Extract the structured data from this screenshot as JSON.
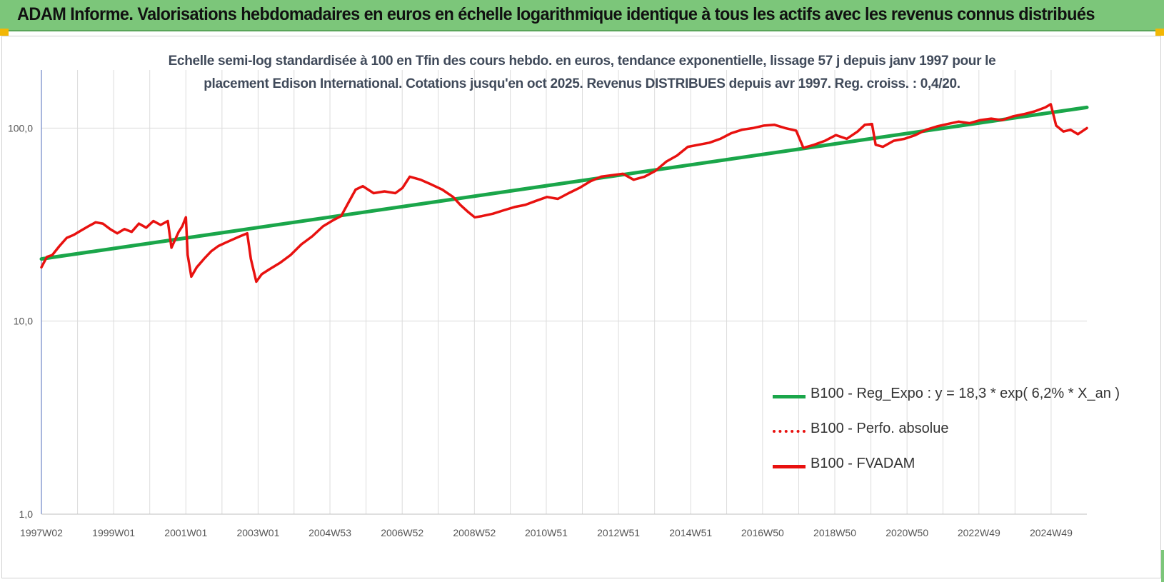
{
  "banner": {
    "title": "ADAM Informe. Valorisations hebdomadaires en euros en échelle logarithmique identique à tous les actifs avec les revenus connus distribués"
  },
  "chart_data": {
    "type": "line",
    "title": "Echelle semi-log standardisée à 100 en Tfin des cours hebdo. en euros, tendance exponentielle, lissage 57 j depuis janv 1997 pour le placement Edison International. Cotations jusqu'en oct 2025. Revenus DISTRIBUES depuis avr 1997. Reg. croiss. : 0,4/20.",
    "title_lines": [
      "Echelle semi-log standardisée à 100 en Tfin des cours hebdo. en euros, tendance exponentielle, lissage 57 j depuis janv 1997 pour le",
      "placement Edison International. Cotations jusqu'en oct 2025. Revenus DISTRIBUES depuis avr 1997. Reg. croiss. : 0,4/20."
    ],
    "y_scale": "log",
    "ylim": [
      1,
      200
    ],
    "y_ticks": [
      {
        "value": 1,
        "label": "1,0"
      },
      {
        "value": 10,
        "label": "10,0"
      },
      {
        "value": 100,
        "label": "100,0"
      }
    ],
    "xlim": [
      1997.0,
      2025.95
    ],
    "x_ticks": [
      {
        "value": 1997.0,
        "label": "1997W02"
      },
      {
        "value": 1999.0,
        "label": "1999W01"
      },
      {
        "value": 2001.0,
        "label": "2001W01"
      },
      {
        "value": 2003.0,
        "label": "2003W01"
      },
      {
        "value": 2004.99,
        "label": "2004W53"
      },
      {
        "value": 2006.99,
        "label": "2006W52"
      },
      {
        "value": 2008.99,
        "label": "2008W52"
      },
      {
        "value": 2010.98,
        "label": "2010W51"
      },
      {
        "value": 2012.98,
        "label": "2012W51"
      },
      {
        "value": 2014.98,
        "label": "2014W51"
      },
      {
        "value": 2016.97,
        "label": "2016W50"
      },
      {
        "value": 2018.97,
        "label": "2018W50"
      },
      {
        "value": 2020.97,
        "label": "2020W50"
      },
      {
        "value": 2022.96,
        "label": "2022W49"
      },
      {
        "value": 2024.96,
        "label": "2024W49"
      }
    ],
    "grid": "vertical+horizontal",
    "legend_position": "bottom-right",
    "series": [
      {
        "name": "B100 - Reg_Expo : y = 18,3 * exp( 6,2% *  X_an )",
        "color": "#1aa64a",
        "style": "solid",
        "x": [
          1997.0,
          2025.95
        ],
        "y": [
          21.0,
          128.0
        ]
      },
      {
        "name": "B100 - Perfo. absolue",
        "color": "#e8110f",
        "style": "dotted",
        "x": [],
        "y": []
      },
      {
        "name": "B100 - FVADAM",
        "color": "#e8110f",
        "style": "solid",
        "x": [
          1997.0,
          1997.15,
          1997.3,
          1997.5,
          1997.7,
          1997.9,
          1998.1,
          1998.3,
          1998.5,
          1998.7,
          1998.9,
          1999.1,
          1999.3,
          1999.5,
          1999.7,
          1999.9,
          2000.1,
          2000.3,
          2000.5,
          2000.6,
          2000.8,
          2000.9,
          2001.0,
          2001.05,
          2001.15,
          2001.3,
          2001.5,
          2001.7,
          2001.9,
          2002.1,
          2002.3,
          2002.5,
          2002.7,
          2002.8,
          2002.95,
          2003.1,
          2003.3,
          2003.6,
          2003.9,
          2004.2,
          2004.5,
          2004.8,
          2005.1,
          2005.3,
          2005.5,
          2005.7,
          2005.9,
          2006.2,
          2006.5,
          2006.8,
          2007.0,
          2007.2,
          2007.5,
          2007.8,
          2008.1,
          2008.4,
          2008.6,
          2008.8,
          2009.0,
          2009.2,
          2009.5,
          2009.8,
          2010.1,
          2010.4,
          2010.7,
          2011.0,
          2011.3,
          2011.6,
          2011.9,
          2012.2,
          2012.5,
          2012.8,
          2013.1,
          2013.4,
          2013.7,
          2014.0,
          2014.3,
          2014.6,
          2014.9,
          2015.2,
          2015.5,
          2015.8,
          2016.1,
          2016.4,
          2016.7,
          2017.0,
          2017.3,
          2017.6,
          2017.9,
          2018.1,
          2018.4,
          2018.7,
          2019.0,
          2019.3,
          2019.6,
          2019.8,
          2020.0,
          2020.1,
          2020.3,
          2020.6,
          2020.9,
          2021.2,
          2021.5,
          2021.8,
          2022.1,
          2022.4,
          2022.7,
          2023.0,
          2023.3,
          2023.6,
          2023.9,
          2024.2,
          2024.5,
          2024.8,
          2024.95,
          2025.1,
          2025.3,
          2025.5,
          2025.7,
          2025.95
        ],
        "y": [
          19.0,
          21.5,
          22.0,
          24.5,
          27.0,
          28.0,
          29.5,
          31.0,
          32.5,
          32.0,
          30.0,
          28.5,
          30.0,
          29.0,
          32.0,
          30.5,
          33.0,
          31.5,
          33.0,
          24.0,
          29.0,
          31.0,
          34.5,
          22.0,
          17.0,
          19.0,
          21.0,
          23.0,
          24.5,
          25.5,
          26.5,
          27.5,
          28.5,
          21.0,
          16.0,
          17.5,
          18.5,
          20.0,
          22.0,
          25.0,
          27.5,
          31.0,
          33.5,
          35.0,
          41.0,
          48.0,
          50.0,
          46.0,
          47.0,
          46.0,
          49.0,
          56.0,
          54.0,
          51.0,
          48.0,
          44.0,
          40.0,
          37.0,
          34.5,
          35.0,
          36.0,
          37.5,
          39.0,
          40.0,
          42.0,
          44.0,
          43.0,
          46.0,
          49.0,
          53.0,
          56.0,
          57.0,
          58.0,
          54.0,
          56.0,
          60.0,
          67.0,
          72.0,
          80.0,
          82.0,
          84.0,
          88.0,
          94.0,
          98.0,
          100.0,
          103.0,
          104.0,
          100.0,
          97.0,
          79.0,
          82.0,
          86.0,
          92.0,
          88.0,
          96.0,
          104.0,
          105.0,
          82.0,
          80.0,
          86.0,
          88.0,
          92.0,
          98.0,
          102.0,
          105.0,
          108.0,
          106.0,
          110.0,
          112.0,
          110.0,
          115.0,
          118.0,
          122.0,
          128.0,
          133.0,
          103.0,
          96.0,
          98.0,
          93.0,
          100.0
        ]
      }
    ]
  },
  "legend": {
    "items": [
      {
        "label": "B100 - Reg_Expo : y = 18,3 * exp( 6,2% *  X_an )",
        "color": "#1aa64a",
        "style": "solid"
      },
      {
        "label": "B100 - Perfo. absolue",
        "color": "#e8110f",
        "style": "dotted"
      },
      {
        "label": "B100 - FVADAM",
        "color": "#e8110f",
        "style": "solid"
      }
    ]
  }
}
